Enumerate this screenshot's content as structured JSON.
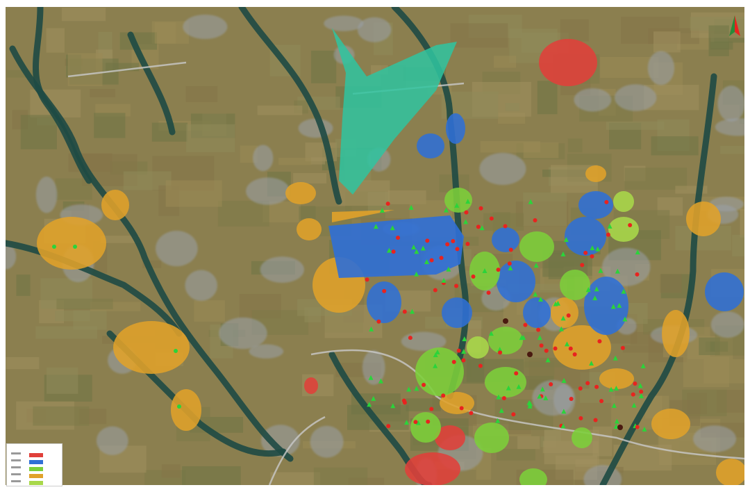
{
  "map": {
    "background_color": "#8b7f4f",
    "river_color": "#1e4a44",
    "road_color": "#c9c9c9",
    "zone_colors": {
      "red": "#e0403a",
      "blue": "#2f6fd6",
      "green": "#7ccf3a",
      "orange": "#e0a22a",
      "light-green": "#a8d84a",
      "teal": "#2fc4a0"
    },
    "marker_colors": {
      "red": "#e8231f",
      "green": "#2bd43a",
      "dark": "#4a1a10"
    }
  },
  "legend": {
    "swatches": [
      "#e0403a",
      "#2f6fd6",
      "#7ccf3a",
      "#e0a22a",
      "#a8d84a"
    ]
  },
  "north_arrow": {
    "color": "#e8231f"
  }
}
